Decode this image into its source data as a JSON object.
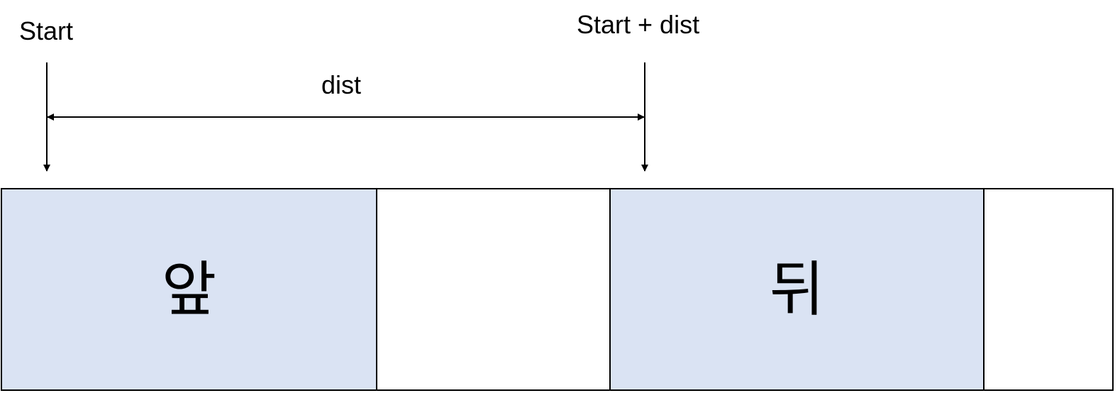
{
  "labels": {
    "start": "Start",
    "start_plus_dist": "Start + dist",
    "dist": "dist"
  },
  "cells": [
    {
      "text": "앞",
      "highlighted": true
    },
    {
      "text": "",
      "highlighted": false
    },
    {
      "text": "뒤",
      "highlighted": true
    },
    {
      "text": "",
      "highlighted": false
    }
  ],
  "colors": {
    "highlight": "#dae3f3",
    "line": "#000000",
    "background": "#ffffff"
  }
}
